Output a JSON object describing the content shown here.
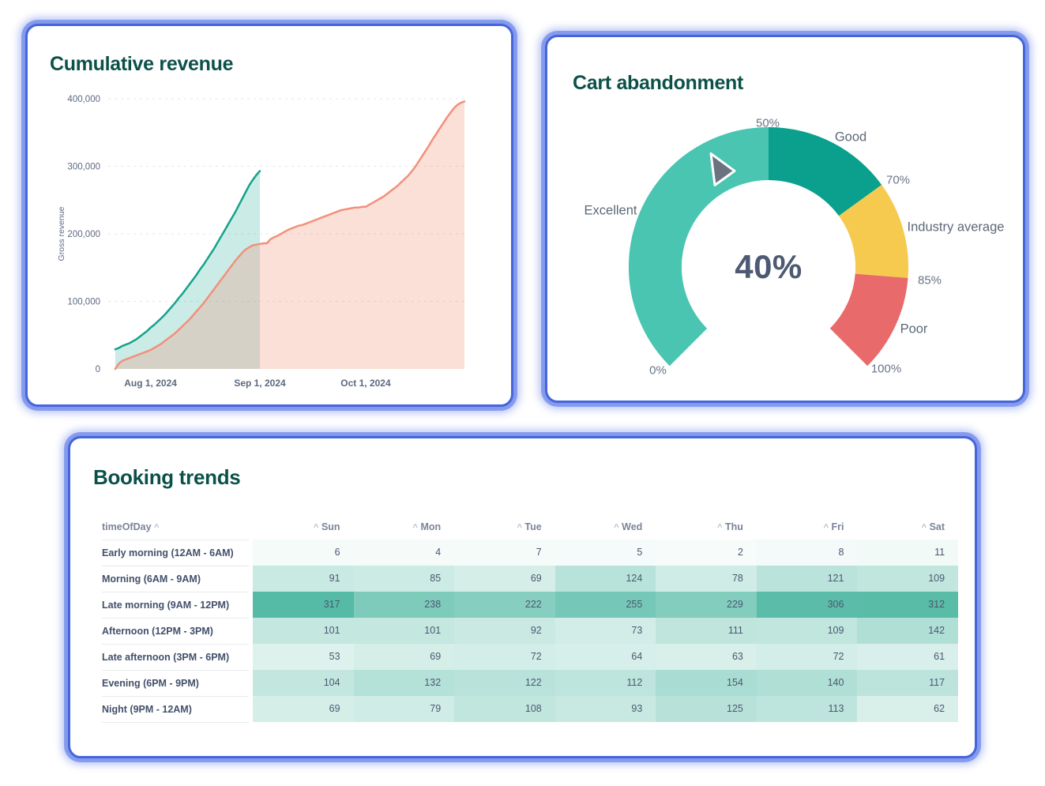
{
  "cards": {
    "revenue": {
      "title": "Cumulative revenue"
    },
    "cart": {
      "title": "Cart abandonment"
    },
    "booking": {
      "title": "Booking trends"
    }
  },
  "chart_data": [
    {
      "id": "cumulative-revenue",
      "type": "area",
      "title": "Cumulative revenue",
      "ylabel": "Gross revenue",
      "ylim": [
        0,
        400000
      ],
      "y_ticks": [
        {
          "value": 0,
          "label": "0"
        },
        {
          "value": 100000,
          "label": "100,000"
        },
        {
          "value": 200000,
          "label": "200,000"
        },
        {
          "value": 300000,
          "label": "300,000"
        },
        {
          "value": 400000,
          "label": "400,000"
        }
      ],
      "x_domain_days": [
        0,
        101
      ],
      "x_ticks": [
        {
          "day": 12,
          "label": "Aug 1, 2024"
        },
        {
          "day": 43,
          "label": "Sep 1, 2024"
        },
        {
          "day": 73,
          "label": "Oct 1, 2024"
        }
      ],
      "grid": "dashed-horizontal",
      "series": [
        {
          "name": "previous-period",
          "color": "#14a38b",
          "fill": "rgba(20,163,139,0.22)",
          "points": [
            [
              2,
              29000
            ],
            [
              3,
              31000
            ],
            [
              4,
              34000
            ],
            [
              5,
              36000
            ],
            [
              6,
              38000
            ],
            [
              7,
              41000
            ],
            [
              8,
              44000
            ],
            [
              9,
              48000
            ],
            [
              10,
              52000
            ],
            [
              11,
              56000
            ],
            [
              12,
              61000
            ],
            [
              13,
              65000
            ],
            [
              14,
              70000
            ],
            [
              15,
              75000
            ],
            [
              16,
              80000
            ],
            [
              17,
              86000
            ],
            [
              18,
              92000
            ],
            [
              19,
              98000
            ],
            [
              20,
              105000
            ],
            [
              21,
              111000
            ],
            [
              22,
              118000
            ],
            [
              23,
              125000
            ],
            [
              24,
              132000
            ],
            [
              25,
              139000
            ],
            [
              26,
              147000
            ],
            [
              27,
              154000
            ],
            [
              28,
              162000
            ],
            [
              29,
              170000
            ],
            [
              30,
              178000
            ],
            [
              31,
              187000
            ],
            [
              32,
              196000
            ],
            [
              33,
              205000
            ],
            [
              34,
              214000
            ],
            [
              35,
              223000
            ],
            [
              36,
              232000
            ],
            [
              37,
              242000
            ],
            [
              38,
              252000
            ],
            [
              39,
              262000
            ],
            [
              40,
              272000
            ],
            [
              41,
              280000
            ],
            [
              42,
              287000
            ],
            [
              43,
              293000
            ]
          ]
        },
        {
          "name": "current-period",
          "color": "#f2907b",
          "fill": "rgba(240,144,116,0.28)",
          "points": [
            [
              2,
              0
            ],
            [
              3,
              8000
            ],
            [
              4,
              12000
            ],
            [
              5,
              14000
            ],
            [
              6,
              16000
            ],
            [
              7,
              18000
            ],
            [
              8,
              20000
            ],
            [
              9,
              22000
            ],
            [
              10,
              24000
            ],
            [
              11,
              26000
            ],
            [
              12,
              28000
            ],
            [
              13,
              31000
            ],
            [
              14,
              34000
            ],
            [
              15,
              37000
            ],
            [
              16,
              41000
            ],
            [
              17,
              45000
            ],
            [
              18,
              49000
            ],
            [
              19,
              53000
            ],
            [
              20,
              58000
            ],
            [
              21,
              63000
            ],
            [
              22,
              68000
            ],
            [
              23,
              73000
            ],
            [
              24,
              79000
            ],
            [
              25,
              85000
            ],
            [
              26,
              91000
            ],
            [
              27,
              97000
            ],
            [
              28,
              104000
            ],
            [
              29,
              111000
            ],
            [
              30,
              118000
            ],
            [
              31,
              125000
            ],
            [
              32,
              132000
            ],
            [
              33,
              139000
            ],
            [
              34,
              146000
            ],
            [
              35,
              153000
            ],
            [
              36,
              160000
            ],
            [
              37,
              166000
            ],
            [
              38,
              172000
            ],
            [
              39,
              177000
            ],
            [
              40,
              180000
            ],
            [
              41,
              183000
            ],
            [
              42,
              184000
            ],
            [
              43,
              185000
            ],
            [
              44,
              186000
            ],
            [
              45,
              186000
            ],
            [
              46,
              192000
            ],
            [
              47,
              195000
            ],
            [
              48,
              197000
            ],
            [
              49,
              200000
            ],
            [
              50,
              203000
            ],
            [
              51,
              206000
            ],
            [
              52,
              208000
            ],
            [
              53,
              210000
            ],
            [
              54,
              212000
            ],
            [
              55,
              213000
            ],
            [
              56,
              215000
            ],
            [
              57,
              217000
            ],
            [
              58,
              219000
            ],
            [
              59,
              221000
            ],
            [
              60,
              223000
            ],
            [
              61,
              225000
            ],
            [
              62,
              227000
            ],
            [
              63,
              229000
            ],
            [
              64,
              231000
            ],
            [
              65,
              233000
            ],
            [
              66,
              235000
            ],
            [
              67,
              236000
            ],
            [
              68,
              237000
            ],
            [
              69,
              238000
            ],
            [
              70,
              239000
            ],
            [
              71,
              239000
            ],
            [
              72,
              240000
            ],
            [
              73,
              240000
            ],
            [
              74,
              243000
            ],
            [
              75,
              246000
            ],
            [
              76,
              249000
            ],
            [
              77,
              252000
            ],
            [
              78,
              255000
            ],
            [
              79,
              259000
            ],
            [
              80,
              263000
            ],
            [
              81,
              267000
            ],
            [
              82,
              271000
            ],
            [
              83,
              276000
            ],
            [
              84,
              281000
            ],
            [
              85,
              286000
            ],
            [
              86,
              292000
            ],
            [
              87,
              299000
            ],
            [
              88,
              307000
            ],
            [
              89,
              315000
            ],
            [
              90,
              323000
            ],
            [
              91,
              331000
            ],
            [
              92,
              340000
            ],
            [
              93,
              348000
            ],
            [
              94,
              356000
            ],
            [
              95,
              364000
            ],
            [
              96,
              372000
            ],
            [
              97,
              379000
            ],
            [
              98,
              386000
            ],
            [
              99,
              391000
            ],
            [
              100,
              394000
            ],
            [
              101,
              396000
            ]
          ]
        }
      ]
    },
    {
      "id": "cart-abandonment",
      "type": "gauge",
      "title": "Cart abandonment",
      "value": 40,
      "value_label": "40%",
      "min": 0,
      "max": 100,
      "start_angle": 225,
      "end_angle": -45,
      "segments": [
        {
          "from": 0,
          "to": 50,
          "label": "Excellent",
          "color": "#49c5b1"
        },
        {
          "from": 50,
          "to": 70,
          "label": "Good",
          "color": "#0aa08d"
        },
        {
          "from": 70,
          "to": 85,
          "label": "Industry average",
          "color": "#f6ca4f"
        },
        {
          "from": 85,
          "to": 100,
          "label": "Poor",
          "color": "#e96a6a"
        }
      ],
      "tick_labels": [
        "0%",
        "50%",
        "70%",
        "85%",
        "100%"
      ],
      "needle_color": "#6b7280"
    },
    {
      "id": "booking-trends",
      "type": "heatmap",
      "title": "Booking trends",
      "row_header": "timeOfDay",
      "sort_caret": "^",
      "columns": [
        "Sun",
        "Mon",
        "Tue",
        "Wed",
        "Thu",
        "Fri",
        "Sat"
      ],
      "rows": [
        "Early morning (12AM - 6AM)",
        "Morning (6AM - 9AM)",
        "Late morning (9AM - 12PM)",
        "Afternoon (12PM - 3PM)",
        "Late afternoon (3PM - 6PM)",
        "Evening (6PM - 9PM)",
        "Night (9PM - 12AM)"
      ],
      "values": [
        [
          6,
          4,
          7,
          5,
          2,
          8,
          11
        ],
        [
          91,
          85,
          69,
          124,
          78,
          121,
          109
        ],
        [
          317,
          238,
          222,
          255,
          229,
          306,
          312
        ],
        [
          101,
          101,
          92,
          73,
          111,
          109,
          142
        ],
        [
          53,
          69,
          72,
          64,
          63,
          72,
          61
        ],
        [
          104,
          132,
          122,
          112,
          154,
          140,
          117
        ],
        [
          69,
          79,
          108,
          93,
          125,
          113,
          62
        ]
      ],
      "color_scale": {
        "min": 0,
        "max": 317,
        "low": "#f8fcfb",
        "high": "#55bba6"
      }
    }
  ]
}
